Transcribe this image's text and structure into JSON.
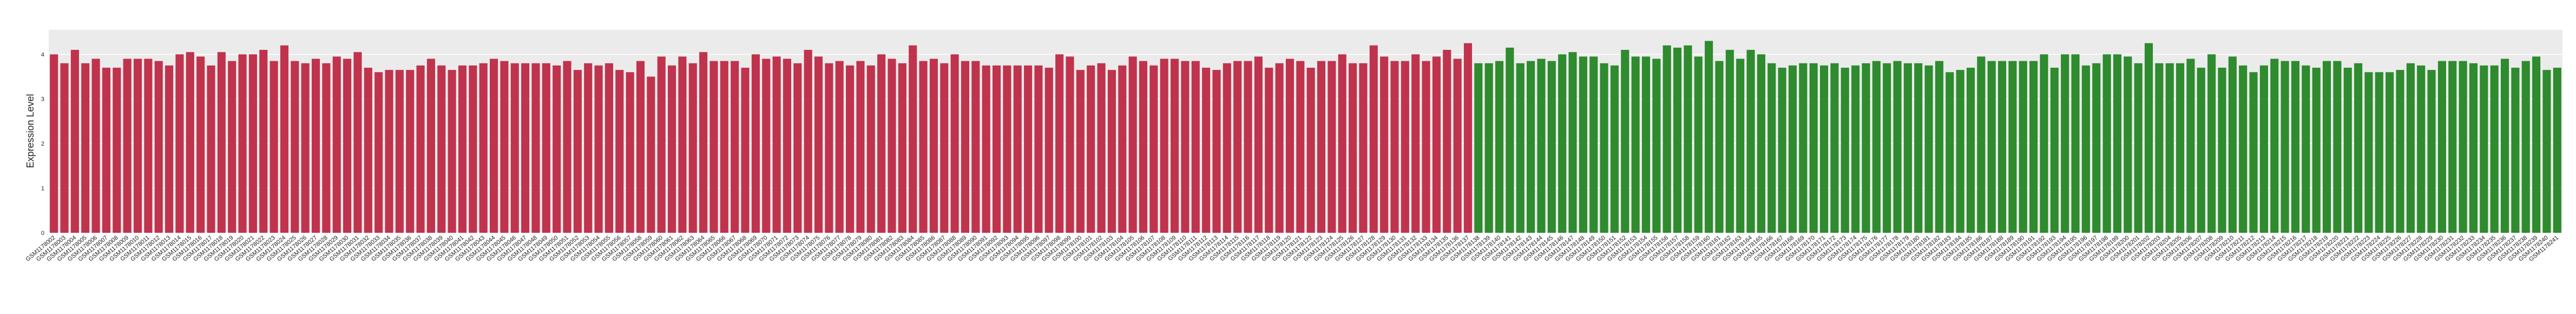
{
  "chart_data": {
    "type": "bar",
    "ylabel": "Expression Level",
    "xlabel": "",
    "ylim": [
      0,
      4.55
    ],
    "yticks": [
      0,
      1,
      2,
      3,
      4
    ],
    "grid": true,
    "legend": "none",
    "colors": {
      "group_a": "#c0334d",
      "group_b": "#2e8b2e",
      "plot_bg": "#ebebeb",
      "grid": "#ffffff"
    },
    "group_a_count": 136,
    "x_prefix": "GSM",
    "x_start": 1178002,
    "values": [
      4.0,
      3.8,
      4.1,
      3.8,
      3.9,
      3.7,
      3.7,
      3.9,
      3.9,
      3.9,
      3.85,
      3.75,
      4.0,
      4.05,
      3.95,
      3.75,
      4.05,
      3.85,
      4.0,
      4.0,
      4.1,
      3.85,
      4.2,
      3.85,
      3.8,
      3.9,
      3.8,
      3.95,
      3.9,
      4.05,
      3.7,
      3.6,
      3.65,
      3.65,
      3.65,
      3.75,
      3.9,
      3.75,
      3.65,
      3.75,
      3.75,
      3.8,
      3.9,
      3.85,
      3.8,
      3.8,
      3.8,
      3.8,
      3.75,
      3.85,
      3.65,
      3.8,
      3.75,
      3.8,
      3.65,
      3.6,
      3.85,
      3.5,
      3.95,
      3.75,
      3.95,
      3.8,
      4.05,
      3.85,
      3.85,
      3.85,
      3.7,
      4.0,
      3.9,
      3.95,
      3.9,
      3.8,
      4.1,
      3.95,
      3.8,
      3.85,
      3.75,
      3.85,
      3.75,
      4.0,
      3.9,
      3.8,
      4.2,
      3.85,
      3.9,
      3.8,
      4.0,
      3.85,
      3.85,
      3.75,
      3.75,
      3.75,
      3.75,
      3.75,
      3.75,
      3.7,
      4.0,
      3.95,
      3.65,
      3.75,
      3.8,
      3.65,
      3.75,
      3.95,
      3.85,
      3.75,
      3.9,
      3.9,
      3.85,
      3.85,
      3.7,
      3.65,
      3.8,
      3.85,
      3.85,
      3.95,
      3.7,
      3.8,
      3.9,
      3.85,
      3.7,
      3.85,
      3.85,
      4.0,
      3.8,
      3.8,
      4.2,
      3.95,
      3.85,
      3.85,
      4.0,
      3.85,
      3.95,
      4.1,
      3.9,
      4.25,
      3.8,
      3.8,
      3.85,
      4.15,
      3.8,
      3.85,
      3.9,
      3.85,
      4.0,
      4.05,
      3.95,
      3.95,
      3.8,
      3.75,
      4.1,
      3.95,
      3.95,
      3.9,
      4.2,
      4.15,
      4.2,
      3.95,
      4.3,
      3.85,
      4.1,
      3.9,
      4.1,
      4.0,
      3.8,
      3.7,
      3.75,
      3.8,
      3.8,
      3.75,
      3.8,
      3.7,
      3.75,
      3.8,
      3.85,
      3.8,
      3.85,
      3.8,
      3.8,
      3.75,
      3.85,
      3.6,
      3.65,
      3.7,
      3.95,
      3.85,
      3.85,
      3.85,
      3.85,
      3.85,
      4.0,
      3.7,
      4.0,
      4.0,
      3.75,
      3.8,
      4.0,
      4.0,
      3.95,
      3.8,
      4.25,
      3.8,
      3.8,
      3.8,
      3.9,
      3.7,
      4.0,
      3.7,
      3.95,
      3.75,
      3.6,
      3.75,
      3.9,
      3.85,
      3.85,
      3.75,
      3.7,
      3.85,
      3.85,
      3.7,
      3.8,
      3.6,
      3.6,
      3.6,
      3.65,
      3.8,
      3.75,
      3.65,
      3.85,
      3.85,
      3.85,
      3.8,
      3.75,
      3.75,
      3.9,
      3.7,
      3.85,
      3.95,
      3.65,
      3.7
    ]
  }
}
